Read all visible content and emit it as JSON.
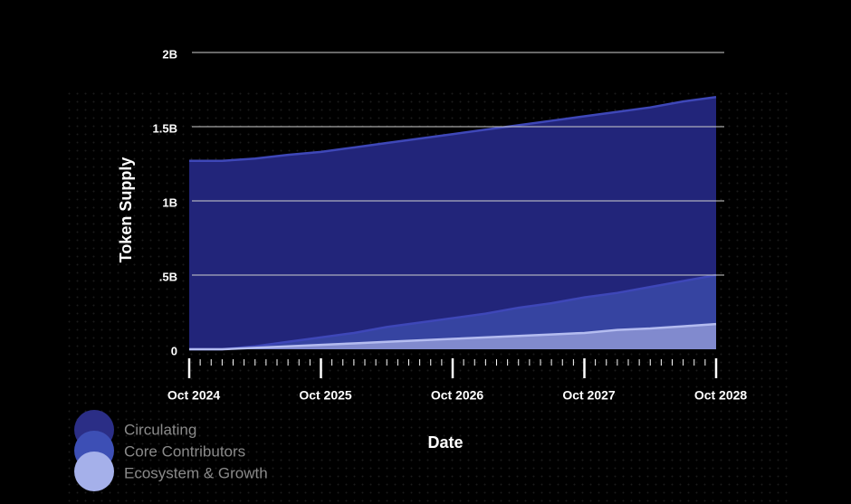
{
  "chart_data": {
    "type": "area",
    "y_label": "Token Supply",
    "x_label": "Date",
    "x": [
      "Oct 2024",
      null,
      null,
      null,
      "Oct 2025",
      null,
      null,
      null,
      "Oct 2026",
      null,
      null,
      null,
      "Oct 2027",
      null,
      null,
      null,
      "Oct 2028"
    ],
    "series": [
      {
        "name": "Circulating",
        "color": "#22257a",
        "values": [
          1.27,
          1.27,
          1.285,
          1.31,
          1.33,
          1.36,
          1.39,
          1.42,
          1.45,
          1.48,
          1.51,
          1.54,
          1.57,
          1.6,
          1.63,
          1.67,
          1.7
        ]
      },
      {
        "name": "Core Contributors",
        "color": "#3a4aa8",
        "values": [
          0,
          0,
          0.02,
          0.05,
          0.08,
          0.11,
          0.15,
          0.18,
          0.21,
          0.24,
          0.28,
          0.31,
          0.35,
          0.38,
          0.42,
          0.46,
          0.5
        ]
      },
      {
        "name": "Ecosystem & Growth",
        "color": "#8e96d6",
        "values": [
          0,
          0,
          0.01,
          0.02,
          0.03,
          0.04,
          0.05,
          0.06,
          0.07,
          0.08,
          0.09,
          0.1,
          0.11,
          0.13,
          0.14,
          0.155,
          0.17
        ]
      }
    ],
    "ylim": [
      0,
      2
    ],
    "yticks": [
      0,
      {
        "value": 0.5,
        "label": ".5B"
      },
      {
        "value": 1,
        "label": "1B"
      },
      {
        "value": 1.5,
        "label": "1.5B"
      },
      {
        "value": 2,
        "label": "2B"
      }
    ],
    "grid": true,
    "legend": "bottom-left"
  }
}
